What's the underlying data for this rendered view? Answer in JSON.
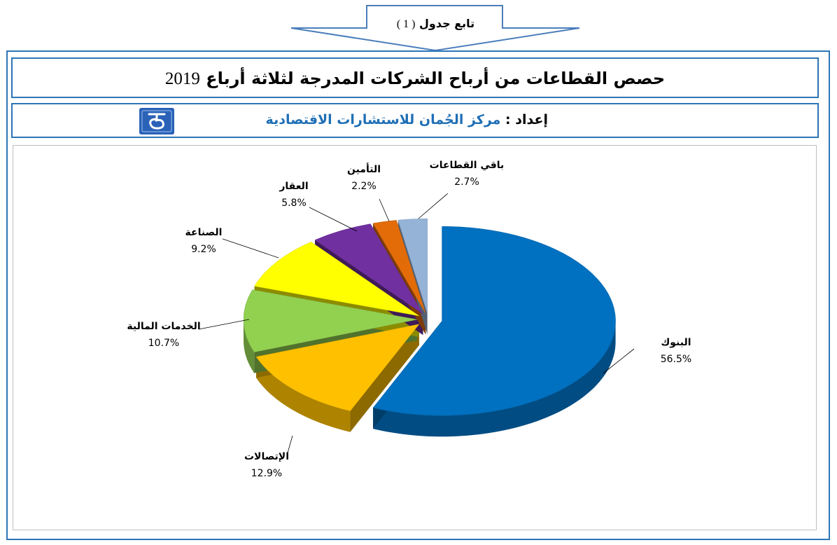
{
  "header": {
    "continued_label": "تابع جدول",
    "table_number": "( 1 )"
  },
  "title": {
    "text": "حصص القطاعات من أرباح الشركات المدرجة لثلاثة أرباع",
    "year": "2019"
  },
  "prepared_by": {
    "label": "إعداد",
    "separator": ":",
    "name": "مركز الجُمان للاستشارات الاقتصادية"
  },
  "chart_data": {
    "type": "pie",
    "three_d": true,
    "categories": [
      "البنوك",
      "الإتصالات",
      "الخدمات المالية",
      "الصناعة",
      "العقار",
      "التأمين",
      "باقي القطاعات"
    ],
    "values": [
      56.5,
      12.9,
      10.7,
      9.2,
      5.8,
      2.2,
      2.7
    ],
    "value_labels": [
      "56.5%",
      "12.9%",
      "10.7%",
      "9.2%",
      "5.8%",
      "2.2%",
      "2.7%"
    ],
    "colors": [
      "#0070c0",
      "#ffc000",
      "#92d050",
      "#ffff00",
      "#7030a0",
      "#e36c09",
      "#95b3d7"
    ],
    "exploded": true,
    "legend": "none"
  }
}
